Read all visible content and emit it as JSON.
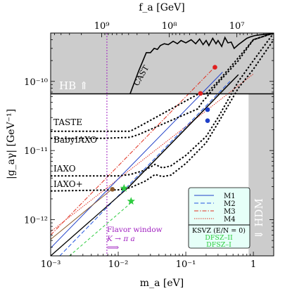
{
  "chart_data": {
    "type": "line",
    "xlabel": "m_a [eV]",
    "ylabel": "|g_aγ|  [GeV⁻¹]",
    "top_xlabel": "f_a [GeV]",
    "xscale": "log",
    "yscale": "log",
    "xlim": [
      0.001,
      2
    ],
    "ylim": [
      3e-13,
      5e-10
    ],
    "x_ticks": [
      {
        "value": 0.001,
        "label": "10⁻³"
      },
      {
        "value": 0.01,
        "label": "10⁻²"
      },
      {
        "value": 0.1,
        "label": "10⁻¹"
      },
      {
        "value": 1,
        "label": "1"
      }
    ],
    "y_ticks": [
      {
        "value": 1e-12,
        "label": "10⁻¹²"
      },
      {
        "value": 1e-11,
        "label": "10⁻¹¹"
      },
      {
        "value": 1e-10,
        "label": "10⁻¹⁰"
      }
    ],
    "top_ticks": [
      {
        "value": 1000000000.0,
        "label": "10⁹"
      },
      {
        "value": 100000000.0,
        "label": "10⁸"
      },
      {
        "value": 10000000.0,
        "label": "10⁷"
      }
    ],
    "regions": [
      {
        "label": "HB ⇑",
        "ymin": 6.6e-11,
        "ymax": 5e-10
      },
      {
        "label": "⇓ HDM",
        "xmin": 0.85,
        "xmax": 2
      },
      {
        "label": "CAST"
      }
    ],
    "sensitivity_curves": [
      {
        "label": "TASTE",
        "x": [
          0.001,
          0.006,
          0.015,
          0.02,
          0.15,
          0.2,
          0.3,
          0.6,
          1,
          2
        ],
        "y": [
          1.9e-11,
          1.9e-11,
          1.9e-11,
          2.2e-11,
          6.5e-11,
          6.6e-11,
          1e-10,
          2.2e-10,
          4e-10,
          5e-10
        ]
      },
      {
        "label": "BabyIAXO",
        "x": [
          0.001,
          0.006,
          0.015,
          0.02,
          0.15,
          0.18,
          0.2,
          0.3,
          0.6,
          1,
          2
        ],
        "y": [
          1.5e-11,
          1.5e-11,
          1.55e-11,
          1.7e-11,
          4e-11,
          5.2e-11,
          5.8e-11,
          9.5e-11,
          2e-10,
          4e-10,
          5e-10
        ]
      },
      {
        "label": "IAXO",
        "x": [
          0.001,
          0.01,
          0.015,
          0.025,
          0.035,
          0.045,
          0.06,
          0.1,
          0.2,
          0.3,
          0.6,
          1,
          2
        ],
        "y": [
          4.3e-12,
          4.3e-12,
          4.5e-12,
          5.2e-12,
          6.3e-12,
          5.6e-12,
          6e-12,
          8.5e-12,
          1.6e-11,
          3e-11,
          1e-10,
          2e-10,
          5e-10
        ]
      },
      {
        "label": "IAXO+",
        "x": [
          0.001,
          0.01,
          0.015,
          0.025,
          0.035,
          0.045,
          0.06,
          0.1,
          0.2,
          0.3,
          0.6,
          1,
          2
        ],
        "y": [
          2.6e-12,
          2.7e-12,
          2.9e-12,
          3.6e-12,
          4.5e-12,
          4.2e-12,
          4.4e-12,
          6.5e-12,
          1.3e-11,
          2.5e-11,
          8e-11,
          1.5e-10,
          4e-10
        ]
      }
    ],
    "flavor_window": {
      "x": 0.0068,
      "label_line1": "Flavor window",
      "label_line2": "K → π a",
      "arrow": "⟹"
    },
    "legend": [
      {
        "name": "M1",
        "style": "solid",
        "color": "#1f3fc8"
      },
      {
        "name": "M2",
        "style": "dashed",
        "color": "#2255e0"
      },
      {
        "name": "M3",
        "style": "dashdot",
        "color": "#e03020"
      },
      {
        "name": "M4",
        "style": "dotted",
        "color": "#e03020"
      }
    ],
    "legend_extra": [
      {
        "name": "KSVZ (E/N = 0)",
        "color": "#000000"
      },
      {
        "name": "DFSZ–II",
        "color": "#2ecc40"
      },
      {
        "name": "DFSZ–I",
        "color": "#2ecc40"
      }
    ],
    "legend_placement": "bottom-right",
    "legend_bg": "#e6fff8",
    "hatch_color": "#cccccc",
    "colors": {
      "M1": "#1f3fc8",
      "M2": "#2255e0",
      "M3": "#e03020",
      "M4": "#e03020",
      "KSVZ": "#000000",
      "DFSZ": "#2ecc40",
      "brown": "#8b5a2b",
      "flavor": "#a020c0"
    }
  }
}
